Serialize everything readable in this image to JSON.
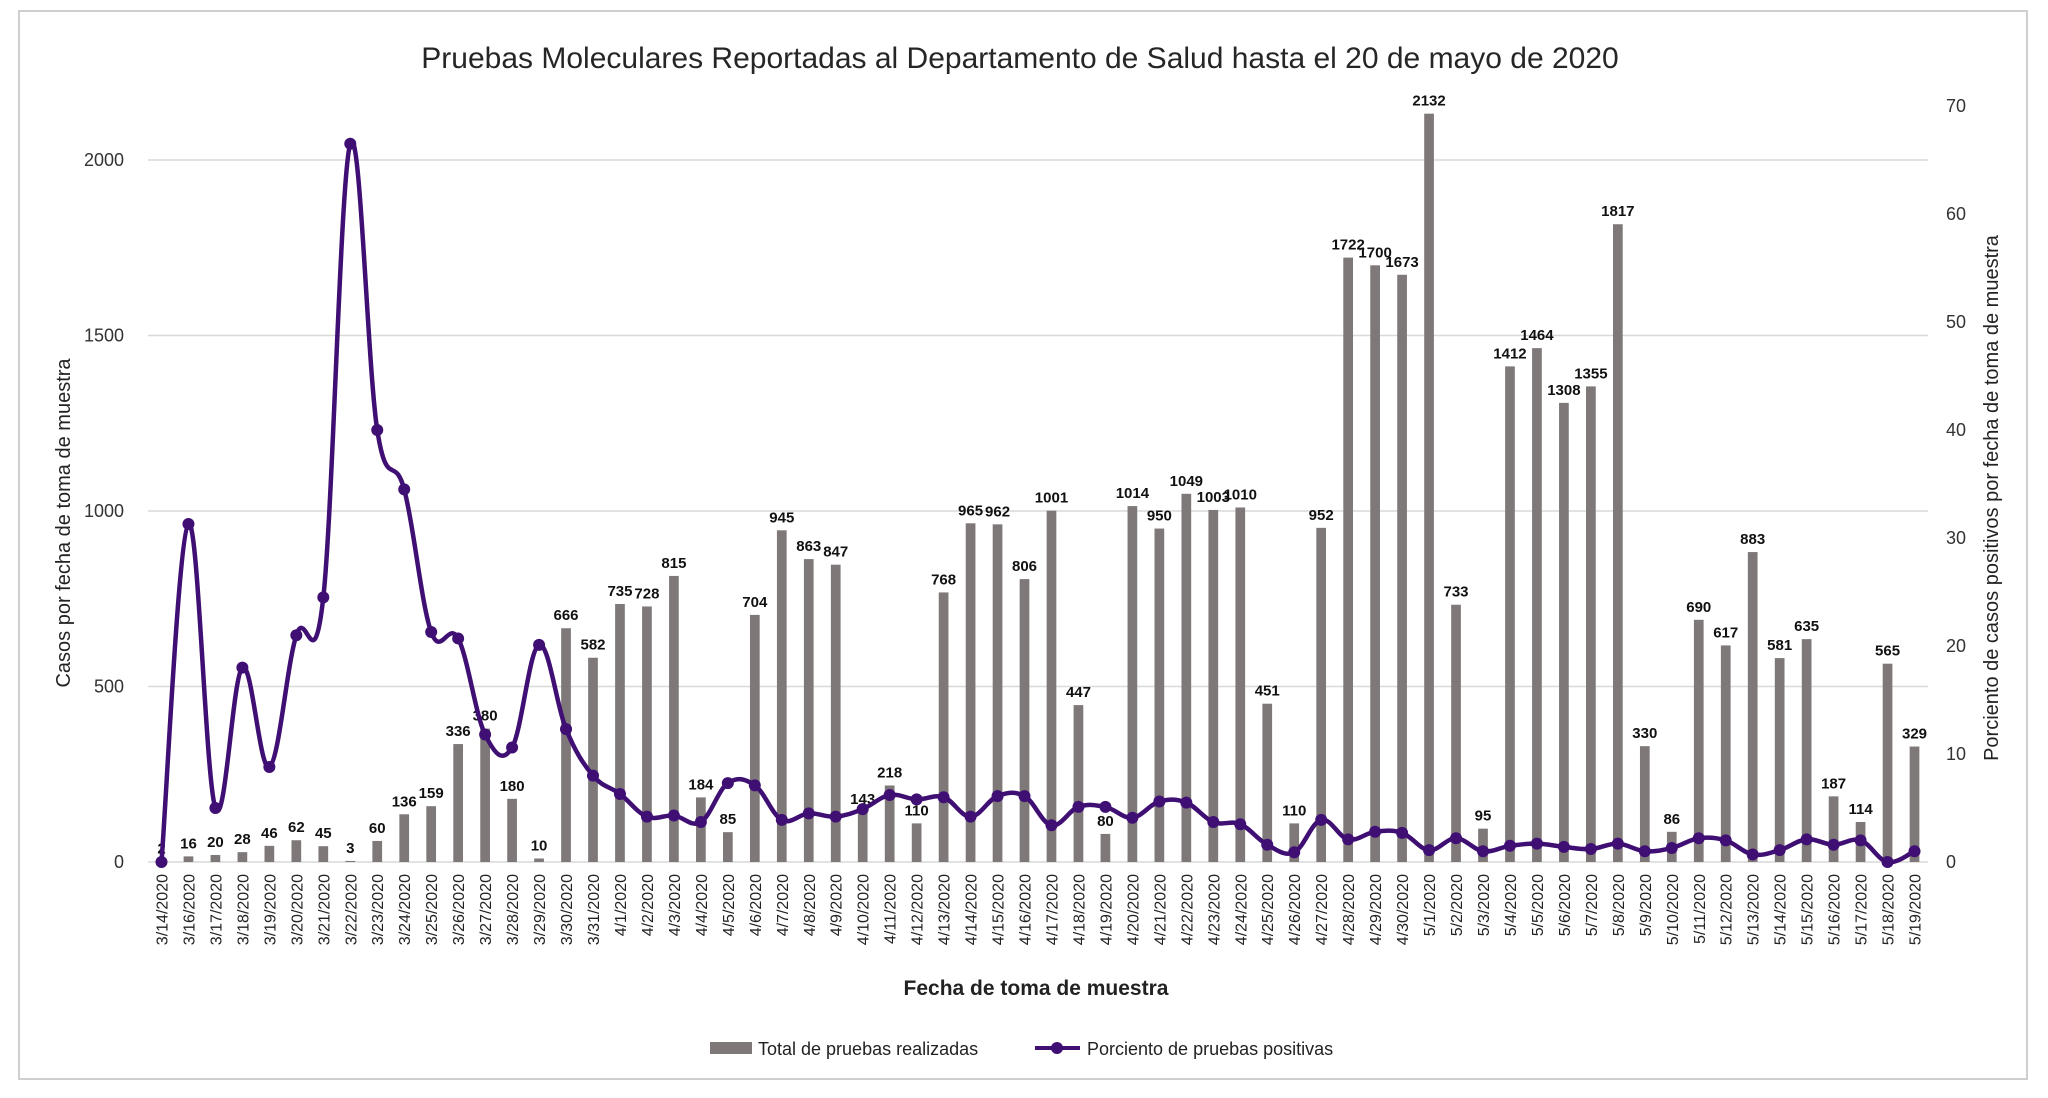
{
  "chart_data": {
    "type": "bar",
    "title": "Pruebas Moleculares Reportadas al Departamento de Salud hasta el 20 de mayo de 2020",
    "xlabel": "Fecha de toma de muestra",
    "ylabel": "Casos por fecha de toma de muestra",
    "y2label": "Porciento de casos positivos por fecha de toma de muestra",
    "ylim": [
      0,
      2000
    ],
    "y_ticks": [
      "0",
      "500",
      "1000",
      "1500",
      "2000"
    ],
    "y2lim": [
      0,
      70
    ],
    "y2_ticks": [
      "0",
      "10",
      "20",
      "30",
      "40",
      "50",
      "60",
      "70"
    ],
    "grid": true,
    "legend_position": "bottom",
    "categories": [
      "3/14/2020",
      "3/16/2020",
      "3/17/2020",
      "3/18/2020",
      "3/19/2020",
      "3/20/2020",
      "3/21/2020",
      "3/22/2020",
      "3/23/2020",
      "3/24/2020",
      "3/25/2020",
      "3/26/2020",
      "3/27/2020",
      "3/28/2020",
      "3/29/2020",
      "3/30/2020",
      "3/31/2020",
      "4/1/2020",
      "4/2/2020",
      "4/3/2020",
      "4/4/2020",
      "4/5/2020",
      "4/6/2020",
      "4/7/2020",
      "4/8/2020",
      "4/9/2020",
      "4/10/2020",
      "4/11/2020",
      "4/12/2020",
      "4/13/2020",
      "4/14/2020",
      "4/15/2020",
      "4/16/2020",
      "4/17/2020",
      "4/18/2020",
      "4/19/2020",
      "4/20/2020",
      "4/21/2020",
      "4/22/2020",
      "4/23/2020",
      "4/24/2020",
      "4/25/2020",
      "4/26/2020",
      "4/27/2020",
      "4/28/2020",
      "4/29/2020",
      "4/30/2020",
      "5/1/2020",
      "5/2/2020",
      "5/3/2020",
      "5/4/2020",
      "5/5/2020",
      "5/6/2020",
      "5/7/2020",
      "5/8/2020",
      "5/9/2020",
      "5/10/2020",
      "5/11/2020",
      "5/12/2020",
      "5/13/2020",
      "5/14/2020",
      "5/15/2020",
      "5/16/2020",
      "5/17/2020",
      "5/18/2020",
      "5/19/2020"
    ],
    "series": [
      {
        "name": "Total de pruebas realizadas",
        "type": "bar",
        "axis": "left",
        "color": "#7f7878",
        "values": [
          2,
          16,
          20,
          28,
          46,
          62,
          45,
          3,
          60,
          136,
          159,
          336,
          380,
          180,
          10,
          666,
          582,
          735,
          728,
          815,
          184,
          85,
          704,
          945,
          863,
          847,
          143,
          218,
          110,
          768,
          965,
          962,
          806,
          1001,
          447,
          80,
          1014,
          950,
          1049,
          1003,
          1010,
          451,
          110,
          952,
          1722,
          1700,
          1673,
          2132,
          733,
          95,
          1412,
          1464,
          1308,
          1355,
          1817,
          330,
          86,
          690,
          617,
          883,
          581,
          635,
          187,
          114,
          565,
          329
        ],
        "labels": [
          "2",
          "16",
          "20",
          "28",
          "46",
          "62",
          "45",
          "3",
          "60",
          "136",
          "159",
          "336",
          "380",
          "180",
          "10",
          "666",
          "582",
          "735",
          "728",
          "815",
          "184",
          "85",
          "704",
          "945",
          "863",
          "847",
          "143",
          "218",
          "110",
          "768",
          "965",
          "962",
          "806",
          "1001",
          "447",
          "80",
          "1014",
          "950",
          "1049",
          "1003",
          "1010",
          "451",
          "110",
          "952",
          "1722",
          "1700",
          "1673",
          "2132",
          "733",
          "95",
          "1412",
          "1464",
          "1308",
          "1355",
          "1817",
          "330",
          "86",
          "690",
          "617",
          "883",
          "581",
          "635",
          "187",
          "114",
          "565",
          "329"
        ]
      },
      {
        "name": "Porciento de pruebas positivas",
        "type": "line",
        "axis": "right",
        "color": "#3f0f73",
        "values": [
          0,
          31.3,
          5,
          18,
          8.8,
          21,
          24.5,
          66.5,
          40,
          34.5,
          21.3,
          20.7,
          11.8,
          10.6,
          20.1,
          12.3,
          8,
          6.3,
          4.2,
          4.3,
          3.7,
          7.3,
          7.1,
          3.9,
          4.5,
          4.2,
          4.9,
          6.2,
          5.8,
          6,
          4.2,
          6.1,
          6.1,
          3.4,
          5.1,
          5.1,
          4.1,
          5.6,
          5.5,
          3.7,
          3.5,
          1.6,
          0.9,
          3.9,
          2.1,
          2.8,
          2.7,
          1.1,
          2.2,
          1,
          1.5,
          1.7,
          1.4,
          1.2,
          1.7,
          1,
          1.3,
          2.2,
          2,
          0.7,
          1.1,
          2.1,
          1.6,
          2,
          0,
          1
        ]
      }
    ]
  }
}
